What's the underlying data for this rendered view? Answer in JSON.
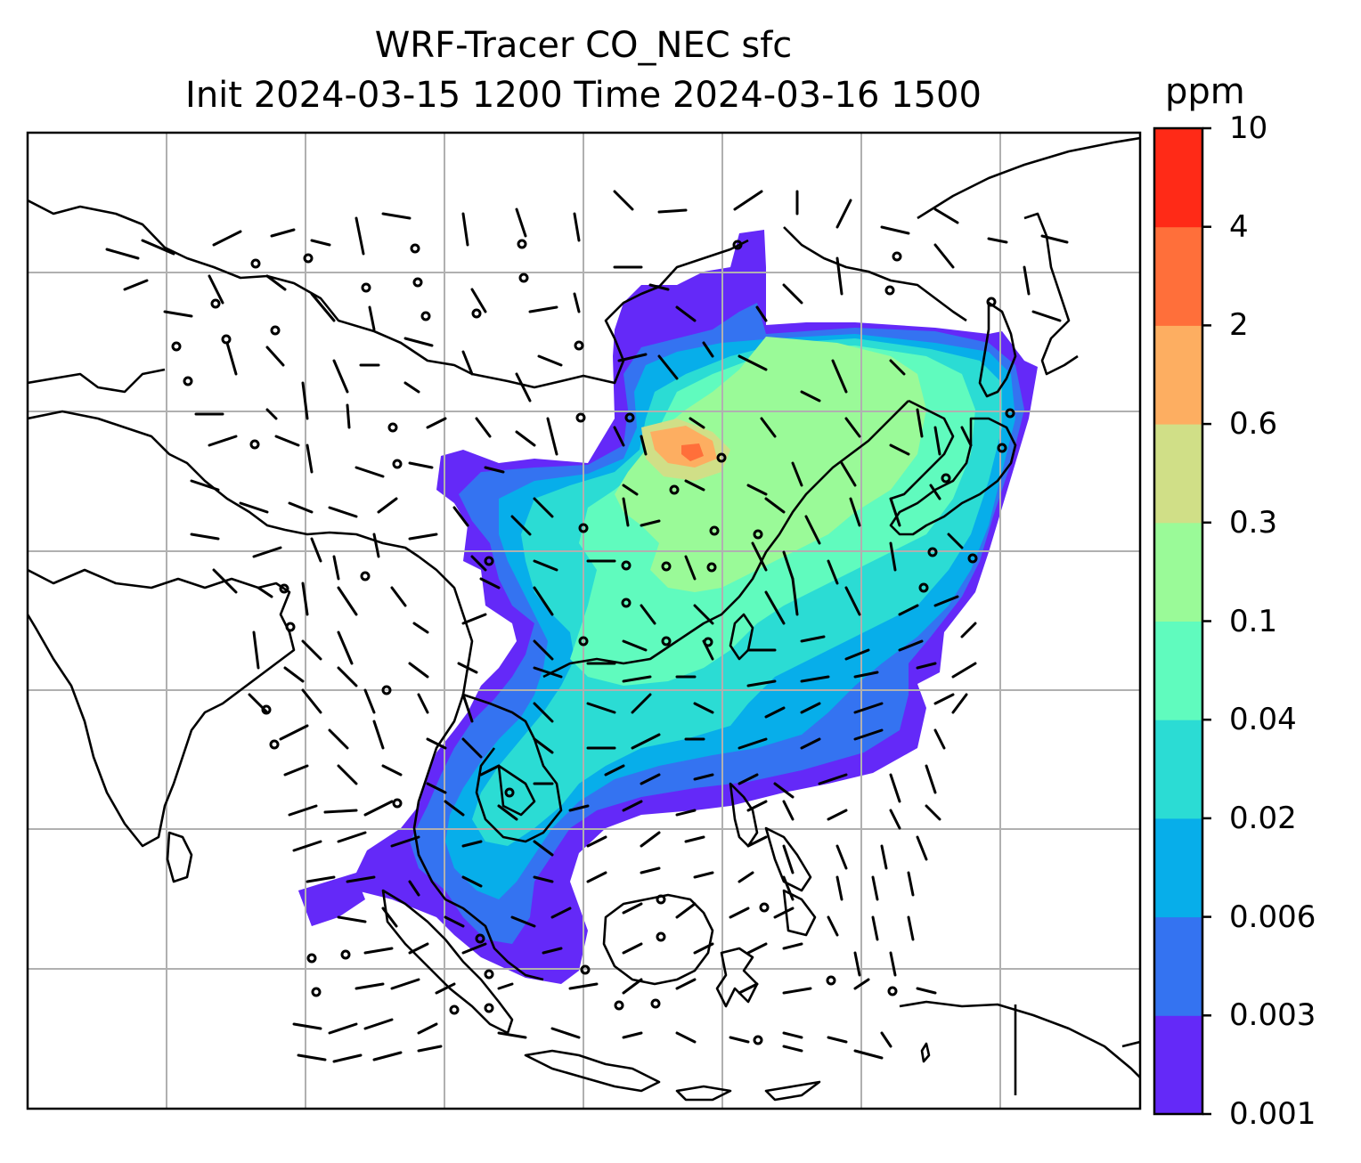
{
  "title": {
    "line1": "WRF-Tracer CO_NEC sfc",
    "line2": "Init 2024-03-15 1200 Time 2024-03-16 1500"
  },
  "colorbar": {
    "unit": "ppm",
    "ticks": [
      "0.001",
      "0.003",
      "0.006",
      "0.02",
      "0.04",
      "0.1",
      "0.3",
      "0.6",
      "2",
      "4",
      "10"
    ],
    "colors": [
      "#6429f8",
      "#3473f1",
      "#07aeea",
      "#2bdcd4",
      "#60fbbe",
      "#9afa98",
      "#d0df87",
      "#fdae61",
      "#ff6f3a",
      "#ff2a17"
    ]
  },
  "map": {
    "field": "CO_NEC surface tracer",
    "wind_barbs": true,
    "gridlines": true,
    "coastlines": true
  }
}
